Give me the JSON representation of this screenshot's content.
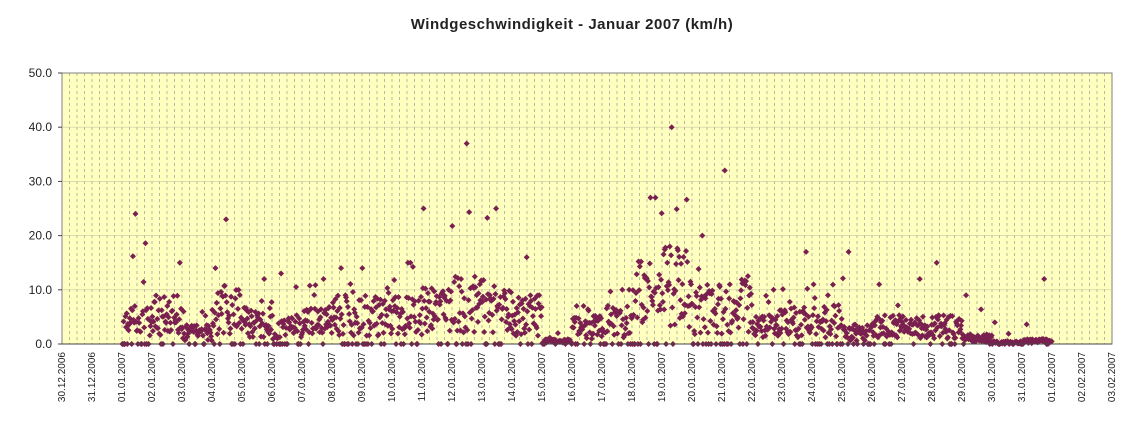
{
  "chart_data": {
    "type": "scatter",
    "title": "Windgeschwindigkeit - Januar 2007 (km/h)",
    "xlabel": "",
    "ylabel": "",
    "ylim": [
      0,
      50
    ],
    "y_ticks": [
      "0.0",
      "10.0",
      "20.0",
      "30.0",
      "40.0",
      "50.0"
    ],
    "x_ticks": [
      "30.12.2006",
      "31.12.2006",
      "01.01.2007",
      "02.01.2007",
      "03.01.2007",
      "04.01.2007",
      "05.01.2007",
      "06.01.2007",
      "07.01.2007",
      "08.01.2007",
      "09.01.2007",
      "10.01.2007",
      "11.01.2007",
      "12.01.2007",
      "13.01.2007",
      "14.01.2007",
      "15.01.2007",
      "16.01.2007",
      "17.01.2007",
      "18.01.2007",
      "19.01.2007",
      "20.01.2007",
      "21.01.2007",
      "22.01.2007",
      "23.01.2007",
      "24.01.2007",
      "25.01.2007",
      "26.01.2007",
      "27.01.2007",
      "28.01.2007",
      "29.01.2007",
      "30.01.2007",
      "31.01.2007",
      "01.02.2007",
      "02.02.2007",
      "03.02.2007"
    ],
    "daily_profile": [
      {
        "date": "01.01.2007",
        "typical": 4,
        "max": 24
      },
      {
        "date": "02.01.2007",
        "typical": 5,
        "max": 15
      },
      {
        "date": "03.01.2007",
        "typical": 2,
        "max": 6
      },
      {
        "date": "04.01.2007",
        "typical": 6,
        "max": 23
      },
      {
        "date": "05.01.2007",
        "typical": 4,
        "max": 12
      },
      {
        "date": "06.01.2007",
        "typical": 3,
        "max": 13
      },
      {
        "date": "07.01.2007",
        "typical": 4,
        "max": 12
      },
      {
        "date": "08.01.2007",
        "typical": 5,
        "max": 14
      },
      {
        "date": "09.01.2007",
        "typical": 5,
        "max": 14
      },
      {
        "date": "10.01.2007",
        "typical": 5,
        "max": 15
      },
      {
        "date": "11.01.2007",
        "typical": 6,
        "max": 25
      },
      {
        "date": "12.01.2007",
        "typical": 7,
        "max": 37
      },
      {
        "date": "13.01.2007",
        "typical": 6,
        "max": 25
      },
      {
        "date": "14.01.2007",
        "typical": 5,
        "max": 16
      },
      {
        "date": "15.01.2007",
        "typical": 0.5,
        "max": 2
      },
      {
        "date": "16.01.2007",
        "typical": 3,
        "max": 7
      },
      {
        "date": "17.01.2007",
        "typical": 4,
        "max": 10
      },
      {
        "date": "18.01.2007",
        "typical": 9,
        "max": 27
      },
      {
        "date": "19.01.2007",
        "typical": 10,
        "max": 40
      },
      {
        "date": "20.01.2007",
        "typical": 6,
        "max": 20
      },
      {
        "date": "21.01.2007",
        "typical": 7,
        "max": 32
      },
      {
        "date": "22.01.2007",
        "typical": 3,
        "max": 10
      },
      {
        "date": "23.01.2007",
        "typical": 4,
        "max": 17
      },
      {
        "date": "24.01.2007",
        "typical": 4,
        "max": 11
      },
      {
        "date": "25.01.2007",
        "typical": 2,
        "max": 17
      },
      {
        "date": "26.01.2007",
        "typical": 3,
        "max": 11
      },
      {
        "date": "27.01.2007",
        "typical": 3,
        "max": 12
      },
      {
        "date": "28.01.2007",
        "typical": 3,
        "max": 15
      },
      {
        "date": "29.01.2007",
        "typical": 1,
        "max": 9
      },
      {
        "date": "30.01.2007",
        "typical": 0.3,
        "max": 4
      },
      {
        "date": "31.01.2007",
        "typical": 0.5,
        "max": 12
      }
    ],
    "grid": true,
    "legend": "none",
    "colors": {
      "plot_background": "#ffffc0",
      "gridline": "#9a9a9a",
      "marker": "#7a2050"
    }
  }
}
